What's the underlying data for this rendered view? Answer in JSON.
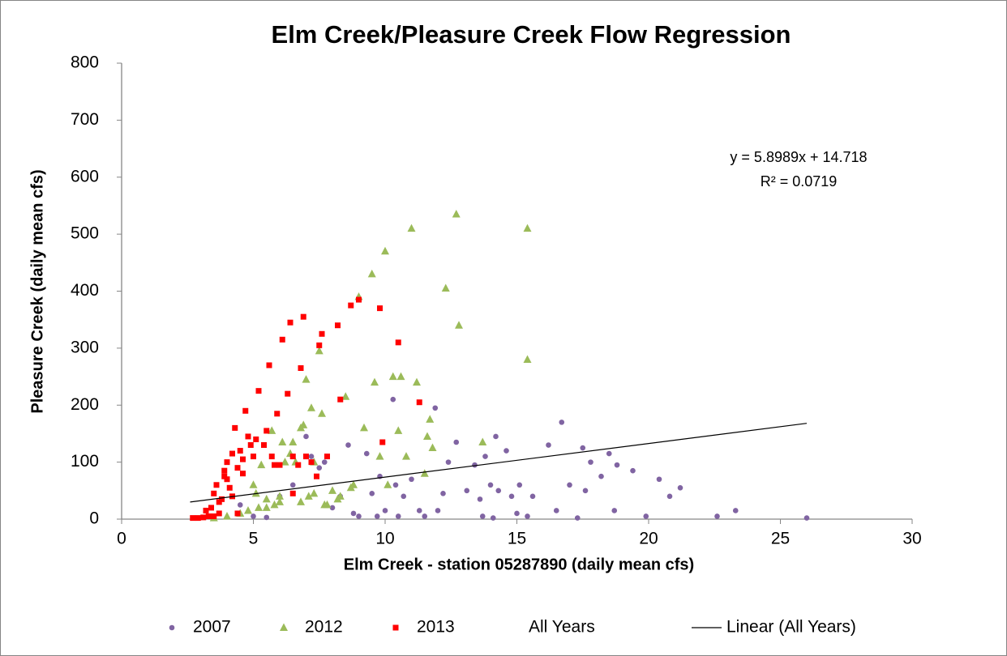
{
  "chart_data": {
    "type": "scatter",
    "title": "Elm Creek/Pleasure Creek Flow Regression",
    "x_label": "Elm Creek - station 05287890 (daily mean cfs)",
    "y_label": "Pleasure Creek (daily mean cfs)",
    "xlim": [
      0,
      30
    ],
    "xticks": [
      0,
      5,
      10,
      15,
      20,
      25,
      30
    ],
    "ylim": [
      0,
      800
    ],
    "yticks": [
      0,
      100,
      200,
      300,
      400,
      500,
      600,
      700,
      800
    ],
    "grid": false,
    "legend": "bottom",
    "series": [
      {
        "name": "2007",
        "color": "#8064a2",
        "marker": "circle",
        "x": [
          4.5,
          5.0,
          5.5,
          6.0,
          6.5,
          7.0,
          7.2,
          7.5,
          7.7,
          8.0,
          8.3,
          8.6,
          8.8,
          9.0,
          9.3,
          9.5,
          9.8,
          10.0,
          10.3,
          10.4,
          10.7,
          11.0,
          11.3,
          11.5,
          11.9,
          12.2,
          12.4,
          12.7,
          13.1,
          13.4,
          13.6,
          13.8,
          14.0,
          14.2,
          14.3,
          14.6,
          14.8,
          15.1,
          15.4,
          15.6,
          16.2,
          16.5,
          16.7,
          17.0,
          17.3,
          17.5,
          17.6,
          17.8,
          18.2,
          18.5,
          18.7,
          18.8,
          19.4,
          19.9,
          20.4,
          20.8,
          21.2,
          22.6,
          23.3,
          26.0,
          9.7,
          10.5,
          12.0,
          13.7,
          14.1,
          15.0
        ],
        "values": [
          25,
          5,
          3,
          40,
          60,
          145,
          110,
          90,
          100,
          20,
          40,
          130,
          10,
          5,
          115,
          45,
          75,
          15,
          210,
          60,
          40,
          70,
          15,
          5,
          195,
          45,
          100,
          135,
          50,
          95,
          35,
          110,
          60,
          145,
          50,
          120,
          40,
          60,
          5,
          40,
          130,
          15,
          170,
          60,
          2,
          125,
          50,
          100,
          75,
          115,
          15,
          95,
          85,
          5,
          70,
          40,
          55,
          5,
          15,
          2,
          5,
          5,
          15,
          5,
          2,
          10
        ]
      },
      {
        "name": "2012",
        "color": "#9bbb59",
        "marker": "triangle",
        "x": [
          3.5,
          4.0,
          4.5,
          5.0,
          5.1,
          5.2,
          5.3,
          5.5,
          5.7,
          5.8,
          6.0,
          6.1,
          6.2,
          6.4,
          6.5,
          6.6,
          6.8,
          6.9,
          7.0,
          7.1,
          7.2,
          7.3,
          7.5,
          7.6,
          7.8,
          8.0,
          8.3,
          8.5,
          8.7,
          9.0,
          9.2,
          9.5,
          9.6,
          9.8,
          10.0,
          10.1,
          10.3,
          10.6,
          10.5,
          10.8,
          11.0,
          11.2,
          11.5,
          11.6,
          11.7,
          11.8,
          12.3,
          12.7,
          12.8,
          13.7,
          15.4,
          15.4,
          4.8,
          5.5,
          6.0,
          6.8,
          7.3,
          7.7,
          8.2,
          8.8
        ],
        "values": [
          2,
          5,
          10,
          60,
          45,
          20,
          95,
          35,
          155,
          25,
          30,
          135,
          100,
          115,
          135,
          100,
          160,
          165,
          245,
          40,
          195,
          100,
          295,
          185,
          25,
          50,
          40,
          215,
          55,
          390,
          160,
          430,
          240,
          110,
          470,
          60,
          250,
          250,
          155,
          110,
          510,
          240,
          80,
          145,
          175,
          125,
          405,
          535,
          340,
          135,
          510,
          280,
          15,
          20,
          40,
          30,
          45,
          25,
          35,
          60
        ]
      },
      {
        "name": "2013",
        "color": "#ff0000",
        "marker": "square",
        "x": [
          2.7,
          2.9,
          3.1,
          3.3,
          3.4,
          3.5,
          3.6,
          3.7,
          3.8,
          3.9,
          4.0,
          4.1,
          4.2,
          4.3,
          4.4,
          4.5,
          4.6,
          4.7,
          4.8,
          4.9,
          5.0,
          5.1,
          5.2,
          5.4,
          5.5,
          5.6,
          5.7,
          5.8,
          5.9,
          6.0,
          6.1,
          6.3,
          6.4,
          6.5,
          6.7,
          6.8,
          6.9,
          7.2,
          7.4,
          7.5,
          7.6,
          7.8,
          8.2,
          8.3,
          8.7,
          9.0,
          9.8,
          9.9,
          10.5,
          11.3,
          3.5,
          3.7,
          4.0,
          4.2,
          4.4,
          3.2,
          3.9,
          4.6,
          6.5,
          7.0
        ],
        "values": [
          2,
          2,
          3,
          5,
          20,
          45,
          60,
          10,
          35,
          75,
          100,
          55,
          115,
          160,
          90,
          120,
          80,
          190,
          145,
          130,
          110,
          140,
          225,
          130,
          155,
          270,
          110,
          95,
          185,
          95,
          315,
          220,
          345,
          110,
          95,
          265,
          355,
          100,
          75,
          305,
          325,
          110,
          340,
          210,
          375,
          385,
          370,
          135,
          310,
          205,
          5,
          30,
          70,
          40,
          10,
          15,
          85,
          105,
          45,
          110
        ]
      },
      {
        "name": "All Years",
        "color": "none",
        "marker": "none",
        "x": [],
        "values": []
      }
    ],
    "trendline": {
      "name": "Linear (All Years)",
      "color": "#000000",
      "slope": 5.8989,
      "intercept": 14.718,
      "x_range": [
        2.6,
        26
      ],
      "equation": "y = 5.8989x + 14.718",
      "r2_label": "R² = 0.0719"
    }
  }
}
